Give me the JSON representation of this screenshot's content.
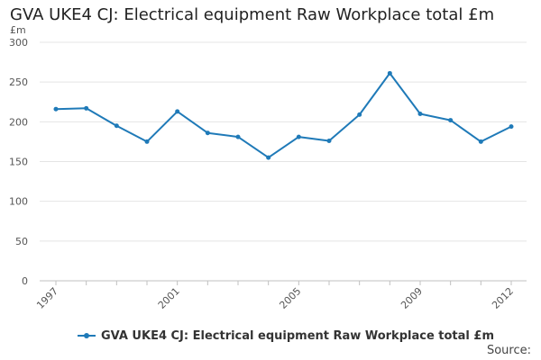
{
  "chart_data": {
    "type": "line",
    "title": "GVA UKE4 CJ: Electrical equipment Raw Workplace total £m",
    "ylabel": "£m",
    "xlabel": "",
    "ylim": [
      0,
      300
    ],
    "yticks": [
      0,
      50,
      100,
      150,
      200,
      250,
      300
    ],
    "xticks": [
      1997,
      2001,
      2005,
      2009,
      2012
    ],
    "grid": true,
    "legend_position": "bottom",
    "series": [
      {
        "name": "GVA UKE4 CJ: Electrical equipment Raw Workplace total £m",
        "color": "#1f7ab8",
        "x": [
          1997,
          1998,
          1999,
          2000,
          2001,
          2002,
          2003,
          2004,
          2005,
          2006,
          2007,
          2008,
          2009,
          2010,
          2011,
          2012
        ],
        "values": [
          216,
          217,
          195,
          175,
          213,
          186,
          181,
          155,
          181,
          176,
          209,
          261,
          210,
          202,
          175,
          194
        ]
      }
    ]
  },
  "source_label": "Source:"
}
